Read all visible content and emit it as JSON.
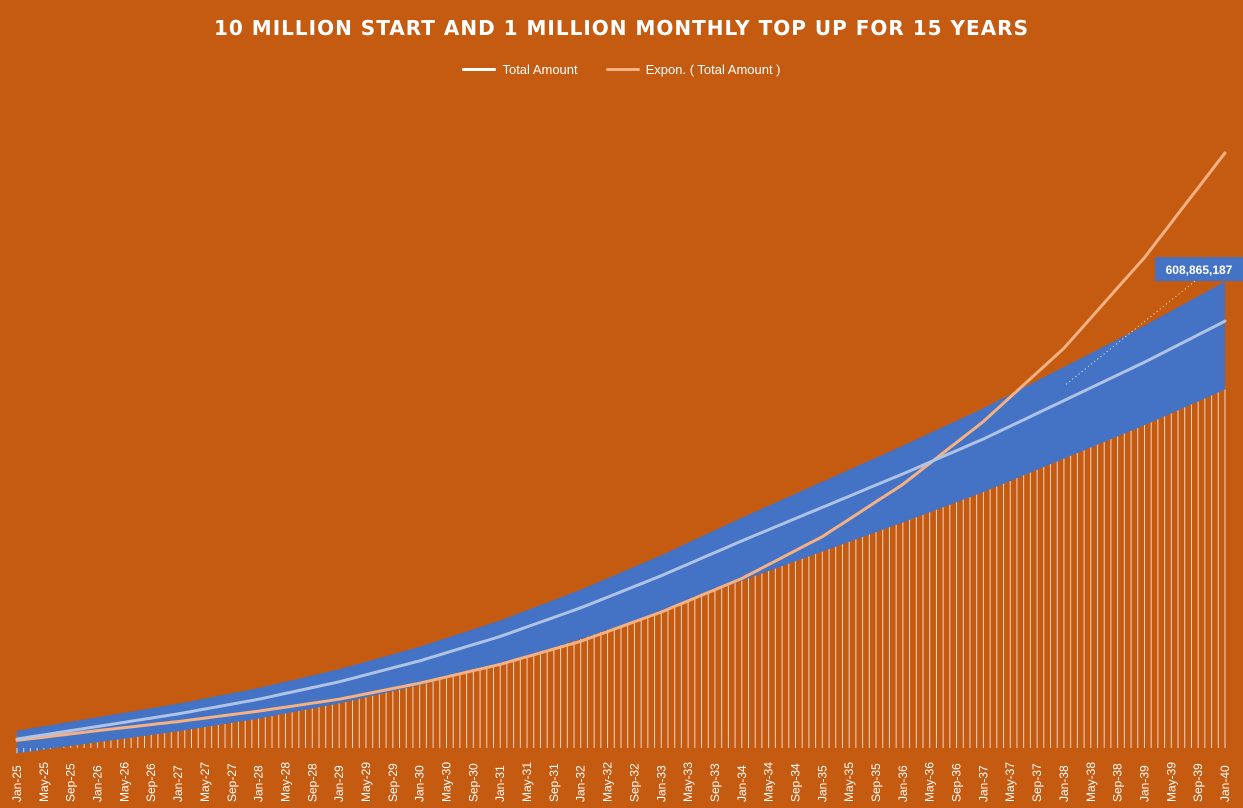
{
  "colors": {
    "background": "#C55A11",
    "band": "#4472C4",
    "total_line": "#FFFFFF",
    "trend_line": "#F4B183",
    "spikes": "#FFFFFF"
  },
  "chart_data": {
    "type": "line",
    "title": "10 MILLION START AND 1 MILLION MONTHLY TOP UP FOR 15 YEARS",
    "legend": [
      "Total Amount",
      "Expon. ( Total Amount )"
    ],
    "legend_position": "top",
    "x_tick_labels": [
      "Jan-25",
      "May-25",
      "Sep-25",
      "Jan-26",
      "May-26",
      "Sep-26",
      "Jan-27",
      "May-27",
      "Sep-27",
      "Jan-28",
      "May-28",
      "Sep-28",
      "Jan-29",
      "May-29",
      "Sep-29",
      "Jan-30",
      "May-30",
      "Sep-30",
      "Jan-31",
      "May-31",
      "Sep-31",
      "Jan-32",
      "May-32",
      "Sep-32",
      "Jan-33",
      "May-33",
      "Sep-33",
      "Jan-34",
      "May-34",
      "Sep-34",
      "Jan-35",
      "May-35",
      "Sep-35",
      "Jan-36",
      "May-36",
      "Sep-36",
      "Jan-37",
      "May-37",
      "Sep-37",
      "Jan-38",
      "May-38",
      "Sep-38",
      "Jan-39",
      "May-39",
      "Sep-39",
      "Jan-40"
    ],
    "x_range": [
      "Jan-25",
      "Jan-40"
    ],
    "y_range": [
      0,
      900000000
    ],
    "y_axis_visible": false,
    "grid": false,
    "series": [
      {
        "name": "Total Amount",
        "start_value": 10000000,
        "monthly_top_up": 1000000,
        "start": "Jan-25",
        "end": "Jan-40",
        "points": [
          {
            "x": "Jan-25",
            "y": 10000000
          },
          {
            "x": "Jan-26",
            "y": 28000000
          },
          {
            "x": "Jan-27",
            "y": 46000000
          },
          {
            "x": "Jan-28",
            "y": 67000000
          },
          {
            "x": "Jan-29",
            "y": 92000000
          },
          {
            "x": "Jan-30",
            "y": 122000000
          },
          {
            "x": "Jan-31",
            "y": 157000000
          },
          {
            "x": "Jan-32",
            "y": 198000000
          },
          {
            "x": "Jan-33",
            "y": 244000000
          },
          {
            "x": "Jan-34",
            "y": 294000000
          },
          {
            "x": "Jan-35",
            "y": 342000000
          },
          {
            "x": "Jan-36",
            "y": 390000000
          },
          {
            "x": "Jan-37",
            "y": 440000000
          },
          {
            "x": "Jan-38",
            "y": 495000000
          },
          {
            "x": "Jan-39",
            "y": 550000000
          },
          {
            "x": "Jan-40",
            "y": 608865187
          }
        ],
        "final_value": 608865187,
        "final_label": "608,865,187"
      },
      {
        "name": "Expon. ( Total Amount )",
        "points": [
          {
            "x": "Jan-25",
            "y": 8000000
          },
          {
            "x": "Jan-26",
            "y": 22000000
          },
          {
            "x": "Jan-27",
            "y": 35000000
          },
          {
            "x": "Jan-28",
            "y": 50000000
          },
          {
            "x": "Jan-29",
            "y": 67000000
          },
          {
            "x": "Jan-30",
            "y": 90000000
          },
          {
            "x": "Jan-31",
            "y": 117000000
          },
          {
            "x": "Jan-32",
            "y": 150000000
          },
          {
            "x": "Jan-33",
            "y": 192000000
          },
          {
            "x": "Jan-34",
            "y": 240000000
          },
          {
            "x": "Jan-35",
            "y": 300000000
          },
          {
            "x": "Jan-36",
            "y": 375000000
          },
          {
            "x": "Jan-37",
            "y": 465000000
          },
          {
            "x": "Jan-38",
            "y": 570000000
          },
          {
            "x": "Jan-39",
            "y": 700000000
          },
          {
            "x": "Jan-40",
            "y": 850000000
          }
        ]
      }
    ]
  }
}
